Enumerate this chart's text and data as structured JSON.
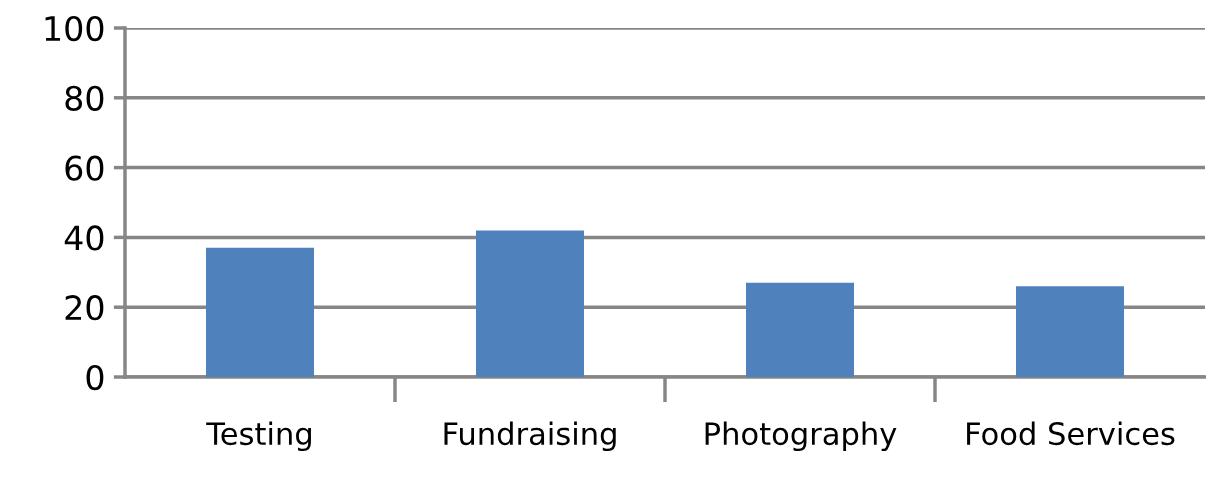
{
  "chart_data": {
    "type": "bar",
    "categories": [
      "Testing",
      "Fundraising",
      "Photography",
      "Food Services"
    ],
    "series": [
      {
        "color": "#4f81bd",
        "values": [
          37,
          42,
          27,
          26
        ]
      }
    ],
    "ylim": [
      0,
      100
    ],
    "yticks": [
      0,
      20,
      40,
      60,
      80,
      100
    ],
    "grid": "y",
    "legend": false
  }
}
